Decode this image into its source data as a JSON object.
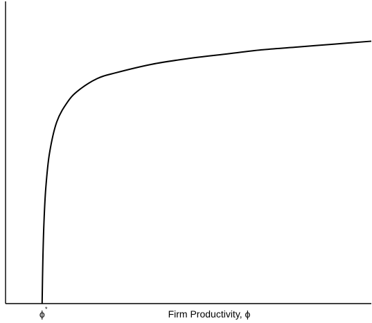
{
  "chart_data": {
    "type": "line",
    "title": "",
    "xlabel": "Firm Productivity, ϕ",
    "ylabel": "",
    "xlim": [
      0,
      1
    ],
    "ylim": [
      0,
      1
    ],
    "grid": false,
    "x_ticks": [
      {
        "label": "ϕ",
        "sup": "*",
        "value": 0.1
      }
    ],
    "series": [
      {
        "color": "#000000",
        "x": [
          0.1,
          0.102,
          0.105,
          0.11,
          0.12,
          0.14,
          0.17,
          0.2,
          0.25,
          0.3,
          0.4,
          0.5,
          0.6,
          0.7,
          0.8,
          0.9,
          1.0
        ],
        "y": [
          0.0,
          0.15,
          0.28,
          0.4,
          0.52,
          0.63,
          0.7,
          0.74,
          0.78,
          0.8,
          0.83,
          0.85,
          0.865,
          0.88,
          0.89,
          0.9,
          0.91
        ]
      }
    ]
  }
}
